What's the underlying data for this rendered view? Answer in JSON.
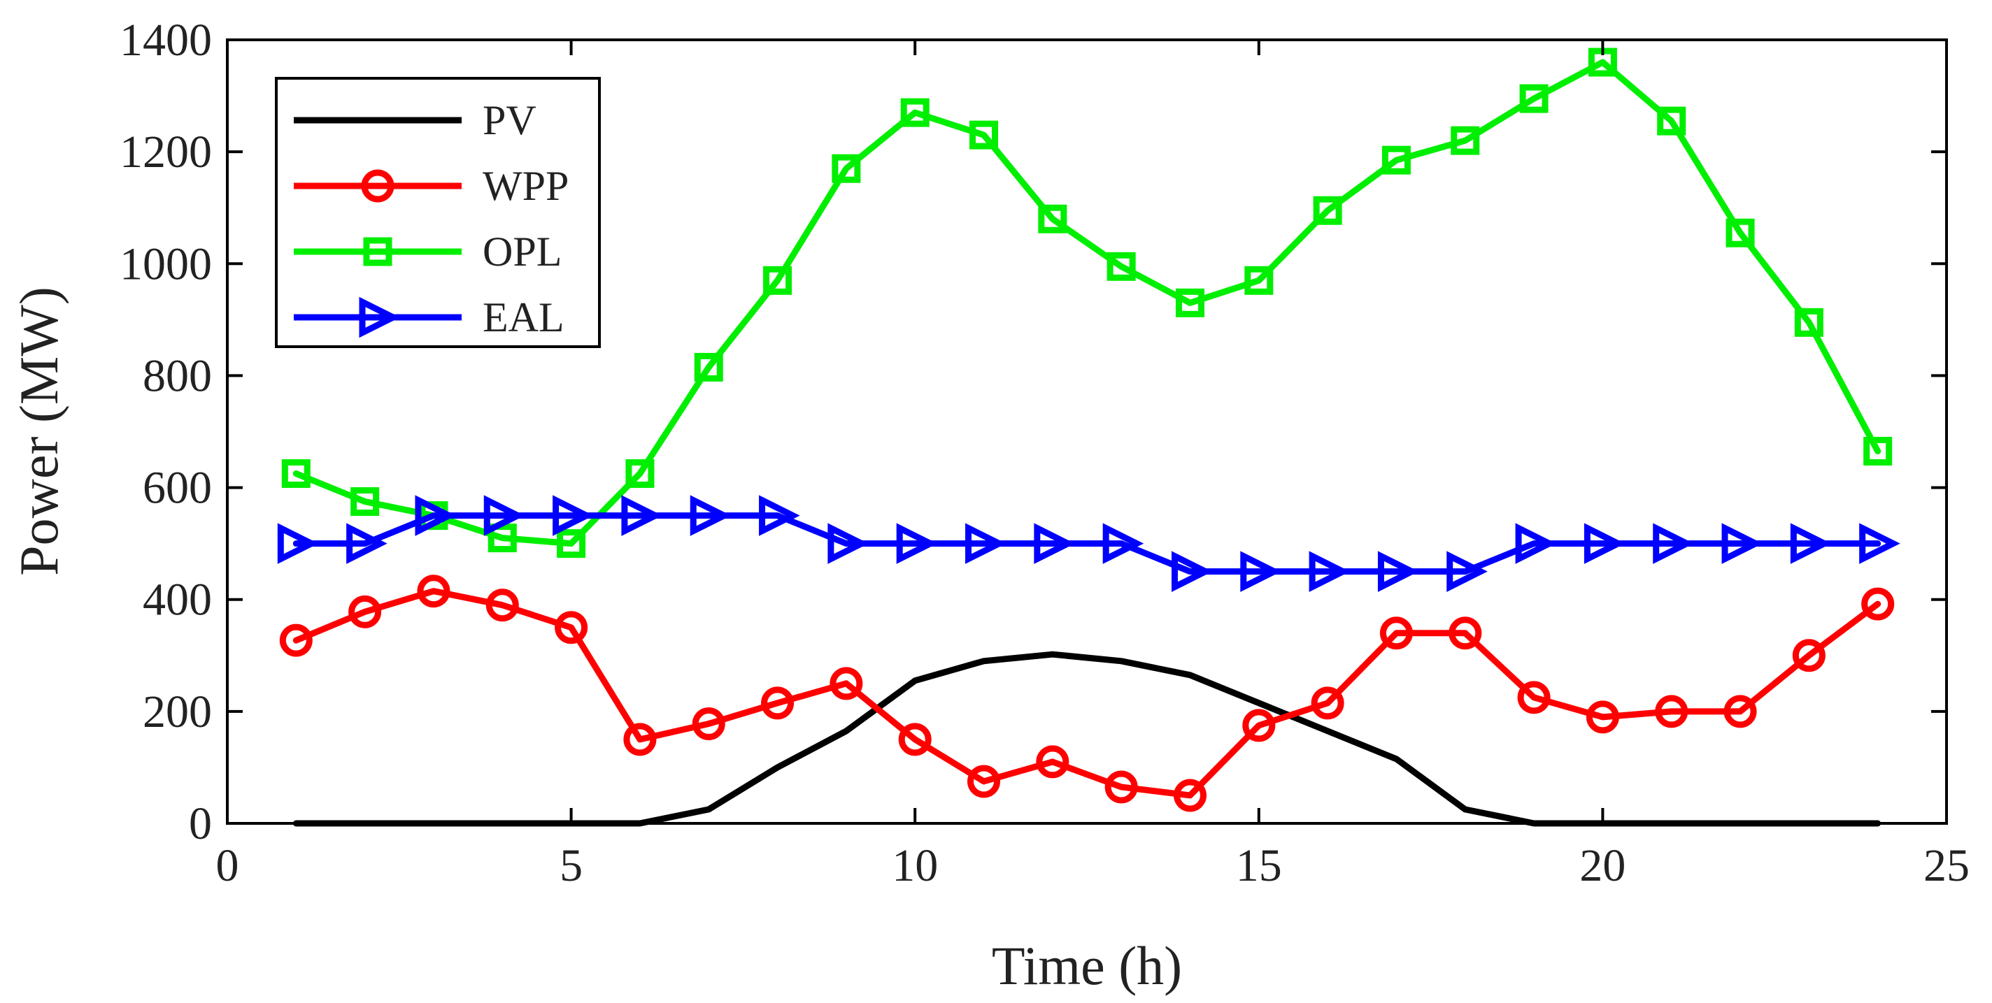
{
  "chart_data": {
    "type": "line",
    "title": "",
    "xlabel": "Time (h)",
    "ylabel": "Power (MW)",
    "xlim": [
      0,
      25
    ],
    "ylim": [
      0,
      1400
    ],
    "xticks": [
      0,
      5,
      10,
      15,
      20,
      25
    ],
    "yticks": [
      0,
      200,
      400,
      600,
      800,
      1000,
      1200,
      1400
    ],
    "grid": false,
    "legend_position": "top-left",
    "x": [
      1,
      2,
      3,
      4,
      5,
      6,
      7,
      8,
      9,
      10,
      11,
      12,
      13,
      14,
      15,
      16,
      17,
      18,
      19,
      20,
      21,
      22,
      23,
      24
    ],
    "series": [
      {
        "name": "PV",
        "color": "#000000",
        "marker": "none",
        "values": [
          0,
          0,
          0,
          0,
          0,
          0,
          25,
          100,
          165,
          255,
          290,
          302,
          290,
          265,
          215,
          165,
          115,
          25,
          0,
          0,
          0,
          0,
          0,
          0
        ]
      },
      {
        "name": "WPP",
        "color": "#ff0000",
        "marker": "circle",
        "values": [
          327,
          378,
          415,
          390,
          350,
          150,
          178,
          215,
          250,
          150,
          75,
          110,
          65,
          50,
          175,
          215,
          340,
          340,
          225,
          190,
          200,
          200,
          300,
          392
        ]
      },
      {
        "name": "OPL",
        "color": "#00ee00",
        "marker": "square",
        "values": [
          625,
          575,
          550,
          510,
          500,
          625,
          815,
          970,
          1170,
          1270,
          1230,
          1080,
          995,
          930,
          970,
          1095,
          1185,
          1220,
          1295,
          1360,
          1255,
          1055,
          895,
          665
        ]
      },
      {
        "name": "EAL",
        "color": "#0000ff",
        "marker": "triangle-right",
        "values": [
          500,
          500,
          550,
          550,
          550,
          550,
          550,
          550,
          500,
          500,
          500,
          500,
          500,
          450,
          450,
          450,
          450,
          450,
          500,
          500,
          500,
          500,
          500,
          500
        ]
      }
    ]
  }
}
